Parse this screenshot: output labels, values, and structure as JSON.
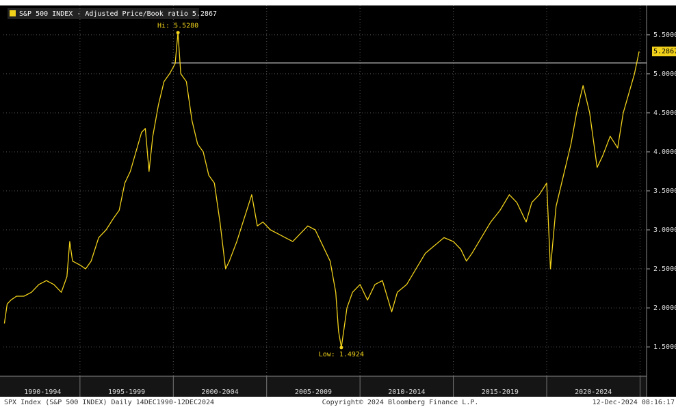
{
  "chart_data": {
    "type": "line",
    "series": [
      {
        "name": "S&P 500 INDEX - Adjusted Price/Book ratio 5.2867",
        "color": "#f2d21b",
        "x": [
          1990.95,
          1991.1,
          1991.3,
          1991.6,
          1992.0,
          1992.4,
          1992.8,
          1993.2,
          1993.6,
          1994.0,
          1994.3,
          1994.45,
          1994.6,
          1995.0,
          1995.3,
          1995.6,
          1996.0,
          1996.4,
          1996.8,
          1997.1,
          1997.4,
          1997.7,
          1998.0,
          1998.3,
          1998.5,
          1998.7,
          1998.9,
          1999.2,
          1999.5,
          1999.8,
          2000.1,
          2000.25,
          2000.4,
          2000.7,
          2001.0,
          2001.3,
          2001.6,
          2001.9,
          2002.2,
          2002.5,
          2002.8,
          2003.0,
          2003.4,
          2003.8,
          2004.2,
          2004.5,
          2004.8,
          2005.2,
          2005.6,
          2006.0,
          2006.4,
          2006.8,
          2007.2,
          2007.6,
          2008.0,
          2008.4,
          2008.7,
          2008.85,
          2009.0,
          2009.3,
          2009.6,
          2010.0,
          2010.4,
          2010.8,
          2011.2,
          2011.7,
          2012.0,
          2012.5,
          2013.0,
          2013.5,
          2014.0,
          2014.5,
          2015.0,
          2015.4,
          2015.7,
          2016.0,
          2016.5,
          2017.0,
          2017.5,
          2018.0,
          2018.4,
          2018.9,
          2019.2,
          2019.6,
          2020.0,
          2020.2,
          2020.5,
          2020.9,
          2021.3,
          2021.6,
          2021.95,
          2022.3,
          2022.7,
          2023.0,
          2023.4,
          2023.8,
          2024.1,
          2024.4,
          2024.7,
          2024.95
        ],
        "values": [
          1.8,
          2.05,
          2.1,
          2.15,
          2.15,
          2.2,
          2.3,
          2.35,
          2.3,
          2.2,
          2.4,
          2.85,
          2.6,
          2.55,
          2.5,
          2.6,
          2.9,
          3.0,
          3.15,
          3.25,
          3.6,
          3.75,
          4.0,
          4.25,
          4.3,
          3.75,
          4.2,
          4.6,
          4.9,
          5.0,
          5.13,
          5.528,
          5.0,
          4.9,
          4.4,
          4.1,
          4.0,
          3.7,
          3.6,
          3.1,
          2.5,
          2.6,
          2.85,
          3.15,
          3.45,
          3.05,
          3.1,
          3.0,
          2.95,
          2.9,
          2.85,
          2.95,
          3.05,
          3.0,
          2.8,
          2.6,
          2.2,
          1.7,
          1.4924,
          2.0,
          2.2,
          2.3,
          2.1,
          2.3,
          2.35,
          1.95,
          2.2,
          2.3,
          2.5,
          2.7,
          2.8,
          2.9,
          2.85,
          2.75,
          2.6,
          2.7,
          2.9,
          3.1,
          3.25,
          3.45,
          3.35,
          3.1,
          3.35,
          3.45,
          3.6,
          2.5,
          3.3,
          3.7,
          4.1,
          4.5,
          4.85,
          4.5,
          3.8,
          3.95,
          4.2,
          4.05,
          4.5,
          4.75,
          5.0,
          5.2867
        ]
      }
    ],
    "xlim": [
      1990.9,
      2025.35
    ],
    "xticks": [
      {
        "value": 1993,
        "label": "1990-1994"
      },
      {
        "value": 1997.5,
        "label": "1995-1999"
      },
      {
        "value": 2002.5,
        "label": "2000-2004"
      },
      {
        "value": 2007.5,
        "label": "2005-2009"
      },
      {
        "value": 2012.5,
        "label": "2010-2014"
      },
      {
        "value": 2017.5,
        "label": "2015-2019"
      },
      {
        "value": 2022.5,
        "label": "2020-2024"
      }
    ],
    "xgrid": [
      1995,
      2000,
      2005,
      2010,
      2015,
      2020,
      2025
    ],
    "ylim": [
      1.124,
      5.876
    ],
    "yticks": [
      {
        "value": 1.5,
        "label": "1.5000"
      },
      {
        "value": 2.0,
        "label": "2.0000"
      },
      {
        "value": 2.5,
        "label": "2.5000"
      },
      {
        "value": 3.0,
        "label": "3.0000"
      },
      {
        "value": 3.5,
        "label": "3.5000"
      },
      {
        "value": 4.0,
        "label": "4.0000"
      },
      {
        "value": 4.5,
        "label": "4.5000"
      },
      {
        "value": 5.0,
        "label": "5.0000"
      },
      {
        "value": 5.5,
        "label": "5.5000"
      }
    ],
    "grid": true,
    "reference_line": {
      "value": 5.14,
      "from": 1999.9
    },
    "annotations": [
      {
        "label": "Hi: 5.5280",
        "x": 2000.25,
        "y": 5.528,
        "side": "above"
      },
      {
        "label": "Low: 1.4924",
        "x": 2009.0,
        "y": 1.4924,
        "side": "below"
      }
    ],
    "last_value": 5.2867,
    "footer": [
      "SPX Index (S&P 500 INDEX)  Daily 14DEC1990-12DEC2024",
      "Copyright© 2024 Bloomberg Finance L.P.",
      "12-Dec-2024 08:16:17"
    ]
  }
}
